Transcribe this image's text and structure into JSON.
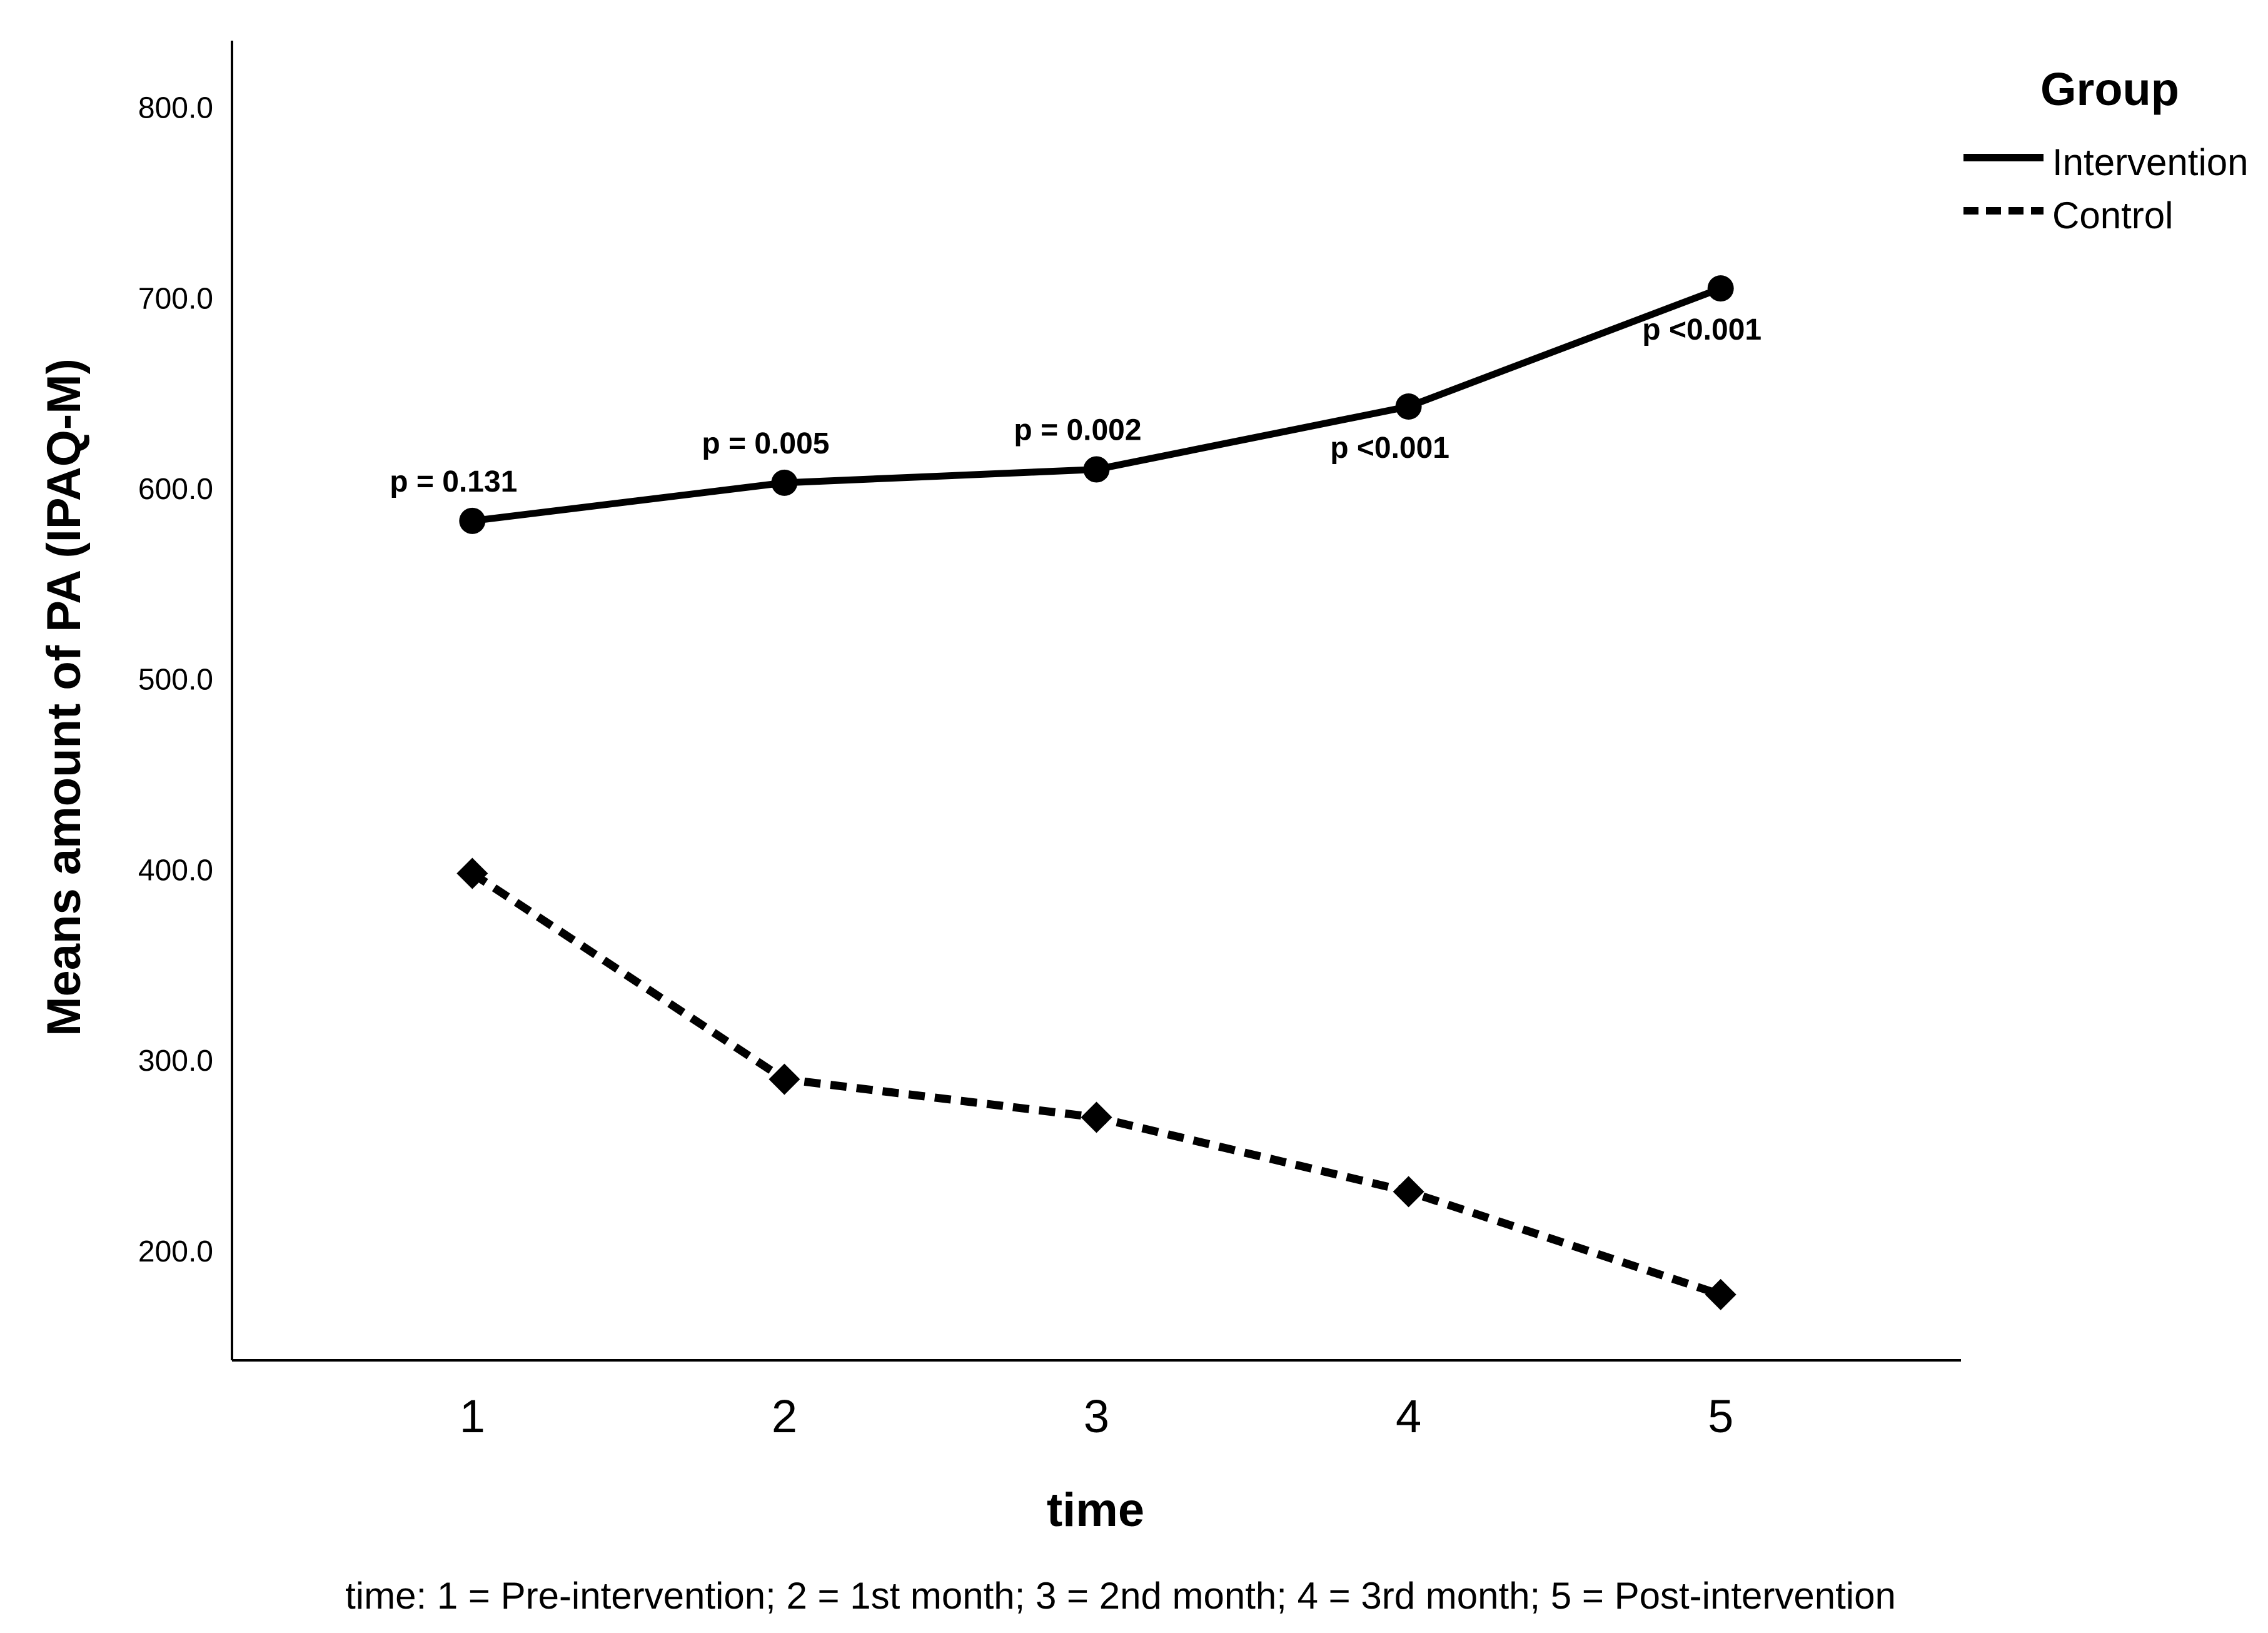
{
  "chart_data": {
    "type": "line",
    "title": "",
    "xlabel": "time",
    "ylabel": "Means amount of PA (IPAQ-M)",
    "caption": "time: 1 = Pre-intervention; 2 = 1st month; 3 = 2nd month; 4 = 3rd month; 5 = Post-intervention",
    "categories": [
      "1",
      "2",
      "3",
      "4",
      "5"
    ],
    "x": [
      1,
      2,
      3,
      4,
      5
    ],
    "xlim": [
      0.23,
      5.77
    ],
    "ylim": [
      142.5,
      835
    ],
    "yticks": [
      200,
      300,
      400,
      500,
      600,
      700,
      800
    ],
    "ytick_labels": [
      "200.0",
      "300.0",
      "400.0",
      "500.0",
      "600.0",
      "700.0",
      "800.0"
    ],
    "grid": false,
    "legend": {
      "title": "Group",
      "position": "top-right"
    },
    "series": [
      {
        "name": "Intervention",
        "style": "solid",
        "marker": "circle",
        "color": "#000000",
        "values": [
          583,
          603,
          610,
          643,
          705
        ],
        "p_labels": [
          "p = 0.131",
          "p = 0.005",
          "p = 0.002",
          "p <0.001",
          "p <0.001"
        ],
        "p_label_positions": [
          "above",
          "above",
          "above",
          "below",
          "below"
        ]
      },
      {
        "name": "Control",
        "style": "dashed",
        "marker": "diamond",
        "color": "#000000",
        "values": [
          398,
          290,
          270,
          231,
          177
        ]
      }
    ]
  }
}
